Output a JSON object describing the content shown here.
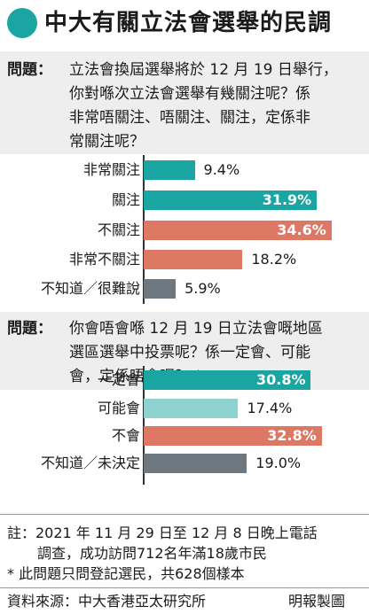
{
  "title": "中大有關立法會選舉的民調",
  "colors": {
    "teal": "#1aa5a3",
    "light_teal": "#8ed2cf",
    "salmon": "#dd7865",
    "grey": "#6e7880",
    "dot": "#1aa5a3"
  },
  "q1": {
    "label": "問題：",
    "lines": [
      "立法會換屆選舉將於 12 月 19 日舉行，",
      "你對喺次立法會選舉有幾關注呢？係",
      "非常唔關注、唔關注、關注，定係非",
      "常關注呢？"
    ]
  },
  "q2": {
    "label": "問題：",
    "lines": [
      "你會唔會喺 12 月 19 日立法會嘅地區",
      "選區選舉中投票呢？係一定會、可能",
      "會，定係唔會呢？ *"
    ]
  },
  "chart_data": [
    {
      "type": "bar",
      "categories": [
        "非常關注",
        "關注",
        "不關注",
        "非常不關注",
        "不知道／很難說"
      ],
      "values": [
        9.4,
        31.9,
        34.6,
        18.2,
        5.9
      ],
      "value_labels": [
        "9.4%",
        "31.9%",
        "34.6%",
        "18.2%",
        "5.9%"
      ],
      "bar_colors": [
        "#1aa5a3",
        "#1aa5a3",
        "#dd7865",
        "#dd7865",
        "#6e7880"
      ],
      "value_inside": [
        false,
        true,
        true,
        false,
        false
      ],
      "unit": "%"
    },
    {
      "type": "bar",
      "categories": [
        "一定會",
        "可能會",
        "不會",
        "不知道／未決定"
      ],
      "values": [
        30.8,
        17.4,
        32.8,
        19.0
      ],
      "value_labels": [
        "30.8%",
        "17.4%",
        "32.8%",
        "19.0%"
      ],
      "bar_colors": [
        "#1aa5a3",
        "#8ed2cf",
        "#dd7865",
        "#6e7880"
      ],
      "value_inside": [
        true,
        false,
        true,
        false
      ],
      "unit": "%"
    }
  ],
  "notes": {
    "line1": "註：2021 年 11 月 29 日至 12 月 8 日晚上電話",
    "line2": "調查，成功訪問712名年滿18歲市民",
    "line3": "* 此問題只問登記選民，共628個樣本",
    "source": "資料來源：中大香港亞太研究所",
    "credit": "明報製圖"
  }
}
